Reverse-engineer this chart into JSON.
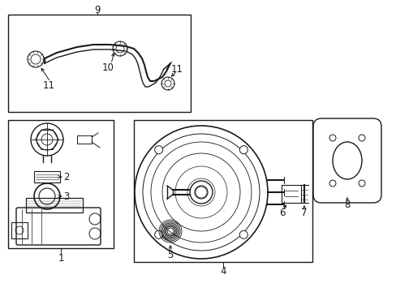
{
  "bg_color": "#ffffff",
  "line_color": "#1a1a1a",
  "fig_width": 4.89,
  "fig_height": 3.6,
  "dpi": 100,
  "label_fontsize": 8.5
}
